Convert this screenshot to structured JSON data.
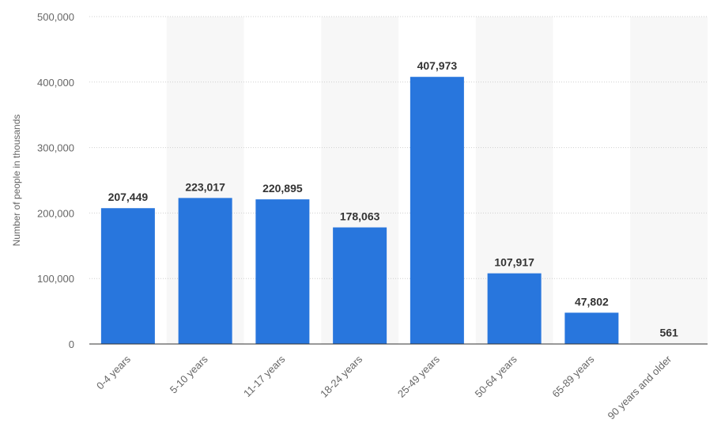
{
  "chart_data": {
    "type": "bar",
    "categories": [
      "0-4 years",
      "5-10 years",
      "11-17 years",
      "18-24 years",
      "25-49 years",
      "50-64 years",
      "65-89 years",
      "90 years and older"
    ],
    "values": [
      207449,
      223017,
      220895,
      178063,
      407973,
      107917,
      47802,
      561
    ],
    "value_labels": [
      "207,449",
      "223,017",
      "220,895",
      "178,063",
      "407,973",
      "107,917",
      "47,802",
      "561"
    ],
    "yticks": [
      0,
      100000,
      200000,
      300000,
      400000,
      500000
    ],
    "ytick_labels": [
      "0",
      "100,000",
      "200,000",
      "300,000",
      "400,000",
      "500,000"
    ],
    "ylim": [
      0,
      500000
    ],
    "ylabel": "Number of people in thousands",
    "xlabel": "",
    "grid": "horizontal dotted",
    "alternating_column_shading": true,
    "bar_color": "#2876dd",
    "shade_color": "#f7f7f7"
  }
}
